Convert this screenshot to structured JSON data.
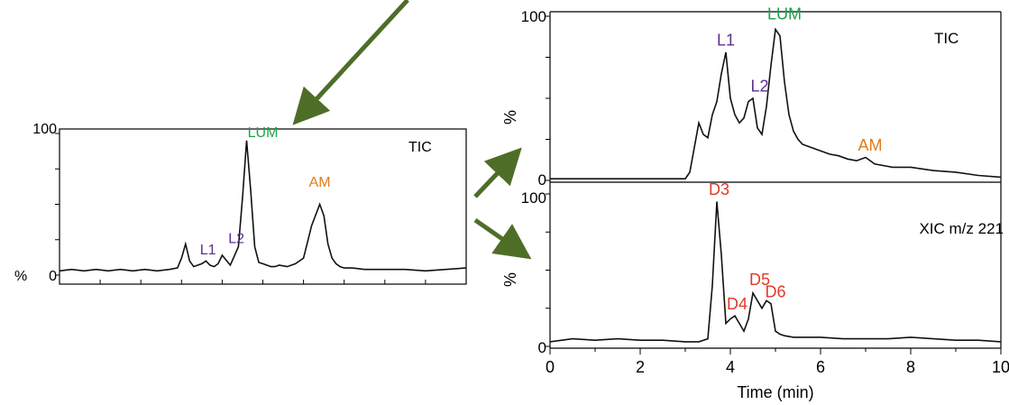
{
  "chart_data": [
    {
      "type": "line",
      "panel": "left-tic",
      "title": "TIC",
      "ylabel": "%",
      "yticks": [
        "100",
        "0"
      ],
      "ylim": [
        0,
        100
      ],
      "xlim": [
        0,
        10
      ],
      "grid": false,
      "series": [
        {
          "x": [
            0,
            0.3,
            0.6,
            0.9,
            1.2,
            1.5,
            1.8,
            2.1,
            2.4,
            2.7,
            2.9,
            3.0,
            3.1,
            3.2,
            3.3,
            3.5,
            3.6,
            3.7,
            3.8,
            3.9,
            4.0,
            4.2,
            4.4,
            4.5,
            4.6,
            4.7,
            4.8,
            4.9,
            5.0,
            5.1,
            5.2,
            5.3,
            5.4,
            5.6,
            5.8,
            6.0,
            6.2,
            6.4,
            6.5,
            6.6,
            6.7,
            6.8,
            6.9,
            7.0,
            7.2,
            7.5,
            8.0,
            8.5,
            9.0,
            9.5,
            10.0
          ],
          "values": [
            3,
            4,
            3,
            4,
            3,
            4,
            3,
            4,
            3,
            4,
            5,
            12,
            22,
            10,
            6,
            8,
            10,
            7,
            6,
            8,
            14,
            7,
            20,
            55,
            95,
            60,
            20,
            9,
            8,
            7,
            6,
            6,
            7,
            6,
            8,
            12,
            35,
            50,
            42,
            22,
            12,
            8,
            6,
            5,
            5,
            4,
            4,
            4,
            3,
            4,
            5
          ]
        }
      ],
      "annotations": [
        {
          "text": "L1",
          "color": "#5b2e91",
          "x": 3.65,
          "y": 12
        },
        {
          "text": "L2",
          "color": "#5b2e91",
          "x": 4.35,
          "y": 20
        },
        {
          "text": "LUM",
          "color": "#1aa34a",
          "x": 5.0,
          "y": 95
        },
        {
          "text": "AM",
          "color": "#e07b1a",
          "x": 6.4,
          "y": 60
        }
      ]
    },
    {
      "type": "line",
      "panel": "right-tic",
      "title": "TIC",
      "ylabel": "%",
      "yticks": [
        "100",
        "0"
      ],
      "ylim": [
        0,
        100
      ],
      "xlim": [
        0,
        10
      ],
      "grid": false,
      "series": [
        {
          "x": [
            0,
            0.5,
            1.0,
            1.5,
            2.0,
            2.5,
            2.9,
            3.0,
            3.1,
            3.2,
            3.3,
            3.4,
            3.5,
            3.6,
            3.7,
            3.8,
            3.9,
            4.0,
            4.1,
            4.2,
            4.3,
            4.4,
            4.5,
            4.6,
            4.7,
            4.8,
            4.9,
            5.0,
            5.1,
            5.2,
            5.3,
            5.4,
            5.5,
            5.6,
            5.8,
            6.0,
            6.2,
            6.4,
            6.6,
            6.8,
            7.0,
            7.2,
            7.4,
            7.6,
            8.0,
            8.5,
            9.0,
            9.5,
            10.0
          ],
          "values": [
            1,
            1,
            1,
            1,
            1,
            1,
            1,
            1,
            5,
            20,
            35,
            28,
            26,
            40,
            48,
            65,
            78,
            50,
            40,
            35,
            38,
            48,
            50,
            32,
            28,
            45,
            70,
            92,
            88,
            60,
            40,
            30,
            25,
            22,
            20,
            18,
            16,
            15,
            13,
            12,
            14,
            10,
            9,
            8,
            8,
            6,
            5,
            3,
            2
          ]
        }
      ],
      "annotations": [
        {
          "text": "L1",
          "color": "#5b2e91",
          "x": 3.9,
          "y": 80
        },
        {
          "text": "L2",
          "color": "#5b2e91",
          "x": 4.65,
          "y": 52
        },
        {
          "text": "LUM",
          "color": "#1aa34a",
          "x": 5.2,
          "y": 96
        },
        {
          "text": "AM",
          "color": "#e07b1a",
          "x": 7.1,
          "y": 16
        }
      ]
    },
    {
      "type": "line",
      "panel": "right-xic",
      "title": "XIC m/z 221",
      "ylabel": "%",
      "xlabel": "Time (min)",
      "xticks": [
        "0",
        "2",
        "4",
        "6",
        "8",
        "10"
      ],
      "yticks": [
        "100",
        "0"
      ],
      "ylim": [
        0,
        100
      ],
      "xlim": [
        0,
        10
      ],
      "grid": false,
      "series": [
        {
          "x": [
            0,
            0.5,
            1.0,
            1.5,
            2.0,
            2.5,
            3.0,
            3.3,
            3.5,
            3.6,
            3.7,
            3.8,
            3.9,
            4.0,
            4.1,
            4.2,
            4.3,
            4.4,
            4.5,
            4.6,
            4.7,
            4.8,
            4.9,
            5.0,
            5.1,
            5.2,
            5.4,
            6.0,
            6.5,
            7.0,
            7.5,
            8.0,
            8.5,
            9.0,
            9.5,
            10.0
          ],
          "values": [
            3,
            5,
            4,
            5,
            4,
            4,
            3,
            3,
            5,
            40,
            95,
            60,
            15,
            18,
            20,
            15,
            10,
            18,
            35,
            30,
            25,
            30,
            28,
            10,
            8,
            7,
            6,
            6,
            5,
            5,
            5,
            6,
            5,
            4,
            4,
            3
          ]
        }
      ],
      "annotations": [
        {
          "text": "D3",
          "color": "#e0392b",
          "x": 3.75,
          "y": 97
        },
        {
          "text": "D4",
          "color": "#e0392b",
          "x": 4.15,
          "y": 22
        },
        {
          "text": "D5",
          "color": "#e0392b",
          "x": 4.65,
          "y": 38
        },
        {
          "text": "D6",
          "color": "#e0392b",
          "x": 5.0,
          "y": 30
        }
      ]
    }
  ],
  "arrow_color": "#4e6e28"
}
